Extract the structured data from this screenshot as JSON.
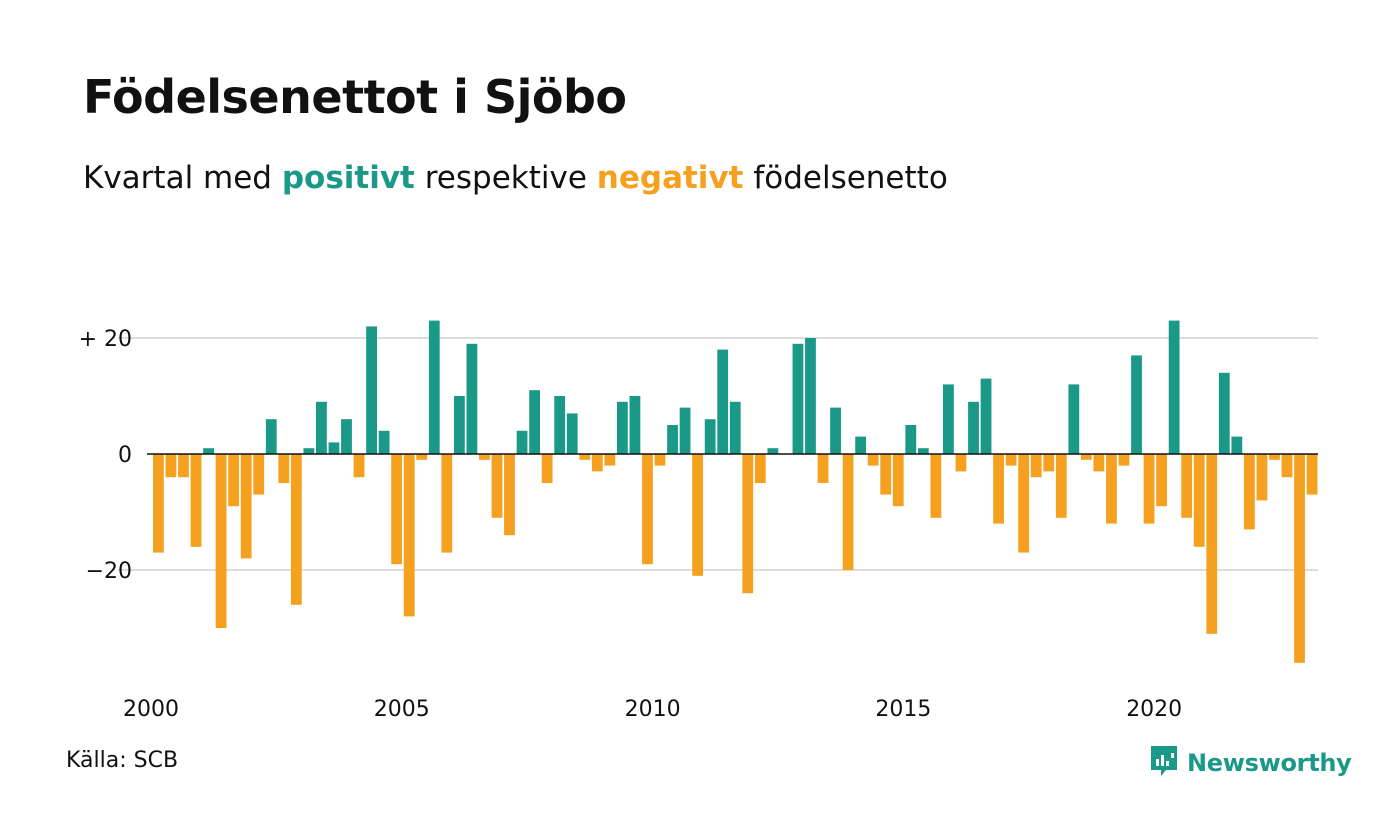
{
  "title": "Födelsenettot i Sjöbo",
  "subtitle": {
    "prefix": "Kvartal med ",
    "positive_word": "positivt",
    "middle": " respektive ",
    "negative_word": "negativt",
    "suffix": " födelsenetto"
  },
  "source": "Källa: SCB",
  "brand": {
    "name": "Newsworthy",
    "icon": "newsworthy-logo-icon"
  },
  "colors": {
    "positive": "#1a9988",
    "negative": "#f5a01f",
    "grid": "#dddddd",
    "zero_line": "#111111"
  },
  "chart_data": {
    "type": "bar",
    "x_start": "2000-Q1",
    "x_ticks": [
      "2000",
      "2005",
      "2010",
      "2015",
      "2020"
    ],
    "y_ticks": [
      {
        "value": 20,
        "label": "+ 20"
      },
      {
        "value": 0,
        "label": "0"
      },
      {
        "value": -20,
        "label": "−20"
      }
    ],
    "ylim": [
      -38,
      24
    ],
    "grid": true,
    "values": [
      -17,
      -4,
      -4,
      -16,
      1,
      -30,
      -9,
      -18,
      -7,
      6,
      -5,
      -26,
      1,
      9,
      2,
      6,
      -4,
      22,
      4,
      -19,
      -28,
      -1,
      23,
      -17,
      10,
      19,
      -1,
      -11,
      -14,
      4,
      11,
      -5,
      10,
      7,
      -1,
      -3,
      -2,
      9,
      10,
      -19,
      -2,
      5,
      8,
      -21,
      6,
      18,
      9,
      -24,
      -5,
      1,
      0,
      19,
      20,
      -5,
      8,
      -20,
      3,
      -2,
      -7,
      -9,
      5,
      1,
      -11,
      12,
      -3,
      9,
      13,
      -12,
      -2,
      -17,
      -4,
      -3,
      -11,
      12,
      -1,
      -3,
      -12,
      -2,
      17,
      -12,
      -9,
      23,
      -11,
      -16,
      -31,
      14,
      3,
      -13,
      -8,
      -1,
      -4,
      -36,
      -7
    ]
  }
}
